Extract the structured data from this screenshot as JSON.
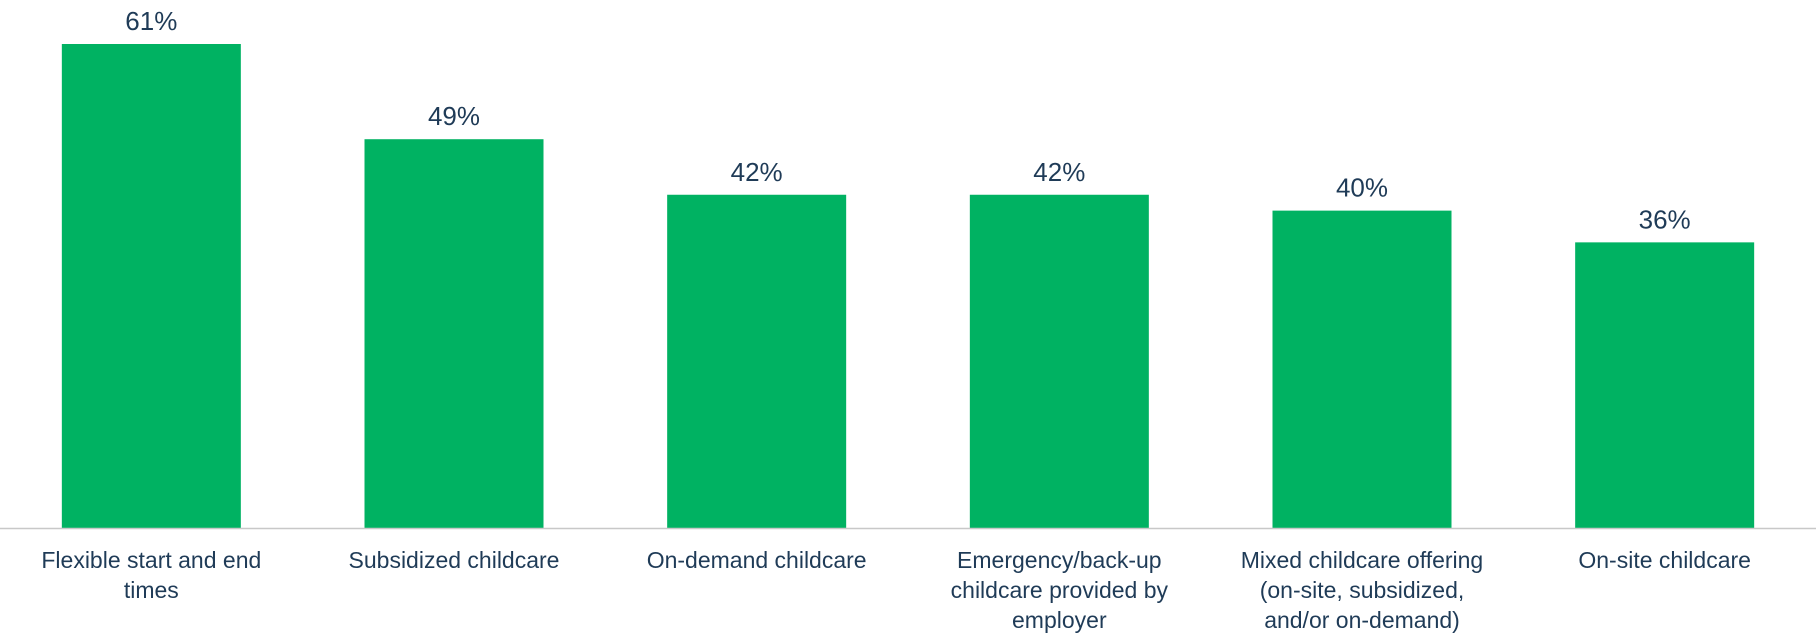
{
  "chart_data": {
    "type": "bar",
    "categories": [
      [
        "Flexible start and end",
        "times"
      ],
      [
        "Subsidized childcare"
      ],
      [
        "On-demand childcare"
      ],
      [
        "Emergency/back-up",
        "childcare provided by",
        "employer"
      ],
      [
        "Mixed childcare offering",
        "(on-site, subsidized,",
        "and/or on-demand)"
      ],
      [
        "On-site childcare"
      ]
    ],
    "values": [
      61,
      49,
      42,
      42,
      40,
      36
    ],
    "value_labels": [
      "61%",
      "49%",
      "42%",
      "42%",
      "40%",
      "36%"
    ],
    "ylim": [
      0,
      70
    ],
    "grid": false,
    "legend": "none",
    "bar_color": "#00b262",
    "axis_color": "#c8c8c8",
    "text_color": "#1f3b57"
  }
}
